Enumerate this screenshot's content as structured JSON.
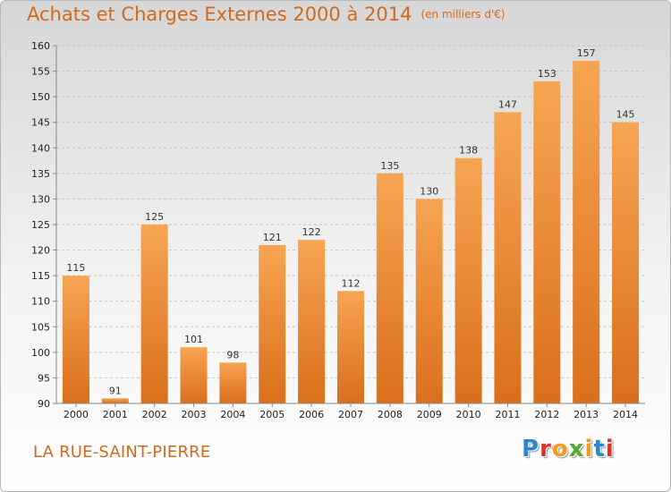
{
  "title": "Achats et Charges Externes 2000 à 2014",
  "subtitle": "(en milliers d'€)",
  "location": "LA RUE-SAINT-PIERRE",
  "logo": "Proxiti",
  "colors": {
    "title": "#d06a1e",
    "bar_light": "#f7a553",
    "bar_dark": "#d96f1c",
    "grid": "#c4c4c4"
  },
  "chart_data": {
    "type": "bar",
    "title": "Achats et Charges Externes 2000 à 2014",
    "subtitle": "(en milliers d'€)",
    "xlabel": "",
    "ylabel": "",
    "categories": [
      "2000",
      "2001",
      "2002",
      "2003",
      "2004",
      "2005",
      "2006",
      "2007",
      "2008",
      "2009",
      "2010",
      "2011",
      "2012",
      "2013",
      "2014"
    ],
    "values": [
      115,
      91,
      125,
      101,
      98,
      121,
      122,
      112,
      135,
      130,
      138,
      147,
      153,
      157,
      145
    ],
    "ylim": [
      90,
      160
    ],
    "yticks": [
      90,
      95,
      100,
      105,
      110,
      115,
      120,
      125,
      130,
      135,
      140,
      145,
      150,
      155,
      160
    ],
    "grid": true,
    "legend": "none"
  }
}
